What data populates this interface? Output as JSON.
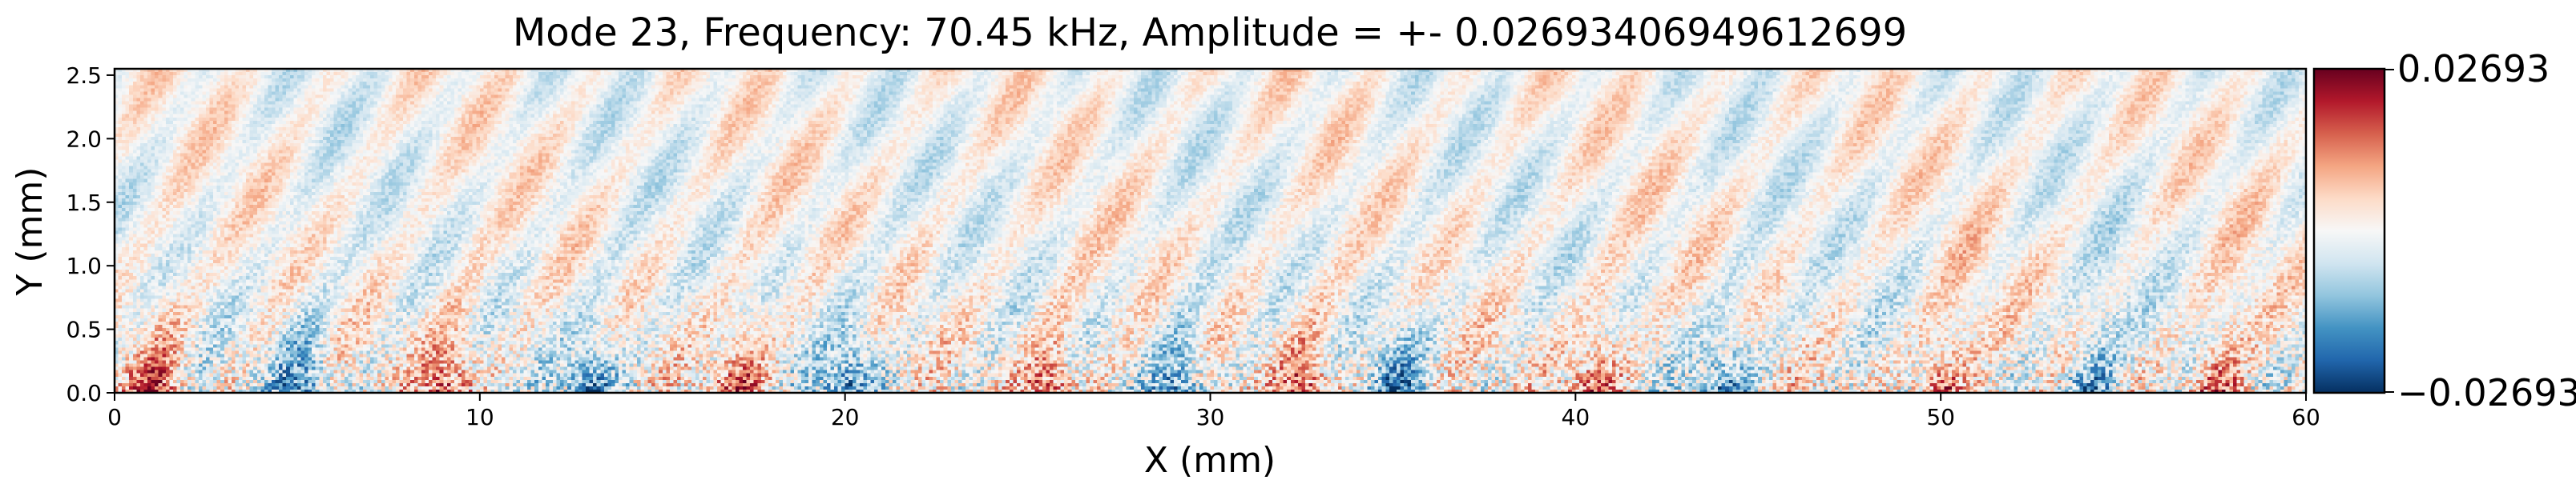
{
  "chart_data": {
    "type": "heatmap",
    "title": "Mode 23, Frequency: 70.45 kHz, Amplitude = +- 0.02693406949612699",
    "xlabel": "X (mm)",
    "ylabel": "Y (mm)",
    "xlim": [
      0,
      60
    ],
    "ylim": [
      0,
      2.55
    ],
    "x_ticks": [
      0,
      10,
      20,
      30,
      40,
      50,
      60
    ],
    "x_tick_labels": [
      "0",
      "10",
      "20",
      "30",
      "40",
      "50",
      "60"
    ],
    "y_ticks": [
      0.0,
      0.5,
      1.0,
      1.5,
      2.0,
      2.5
    ],
    "y_tick_labels": [
      "0.0",
      "0.5",
      "1.0",
      "1.5",
      "2.0",
      "2.5"
    ],
    "colormap": "RdBu_r",
    "colors": {
      "min": "#053061",
      "mid": "#f7f7f7",
      "max": "#67001f"
    },
    "colorbar": {
      "min": -0.02693,
      "max": 0.02693,
      "tick_labels": [
        "0.02693",
        "−0.02693"
      ]
    },
    "grid": false,
    "hot_spots_x": [
      1,
      5,
      9,
      13,
      17,
      20,
      25.5,
      29,
      32.5,
      35,
      40.5,
      44,
      50,
      54,
      57.5
    ]
  }
}
